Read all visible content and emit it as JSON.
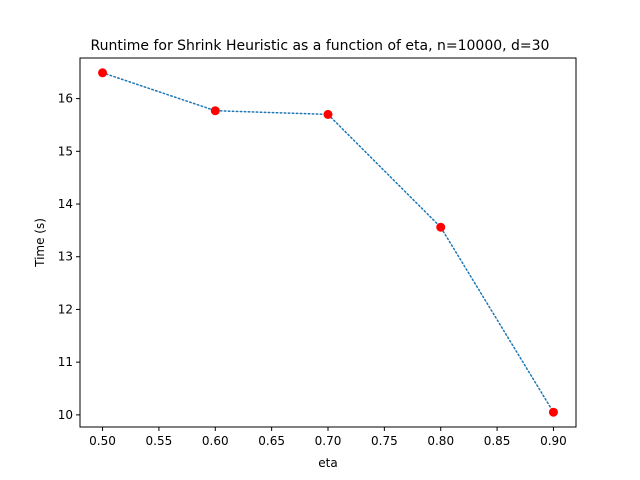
{
  "chart_data": {
    "type": "line",
    "title": "Runtime for Shrink Heuristic as a function of eta, n=10000, d=30",
    "xlabel": "eta",
    "ylabel": "Time (s)",
    "x": [
      0.5,
      0.6,
      0.7,
      0.8,
      0.9
    ],
    "series": [
      {
        "values": [
          16.49,
          15.77,
          15.7,
          13.56,
          10.05
        ],
        "line_color": "#1f77b4",
        "line_style": "dotted",
        "marker_color": "#ff0000"
      }
    ],
    "xlim": [
      0.48,
      0.92
    ],
    "ylim": [
      9.77,
      16.77
    ],
    "xticks": [
      0.5,
      0.55,
      0.6,
      0.65,
      0.7,
      0.75,
      0.8,
      0.85,
      0.9
    ],
    "xtick_labels": [
      "0.50",
      "0.55",
      "0.60",
      "0.65",
      "0.70",
      "0.75",
      "0.80",
      "0.85",
      "0.90"
    ],
    "yticks": [
      10,
      11,
      12,
      13,
      14,
      15,
      16
    ],
    "ytick_labels": [
      "10",
      "11",
      "12",
      "13",
      "14",
      "15",
      "16"
    ],
    "grid": false,
    "legend": "none"
  }
}
